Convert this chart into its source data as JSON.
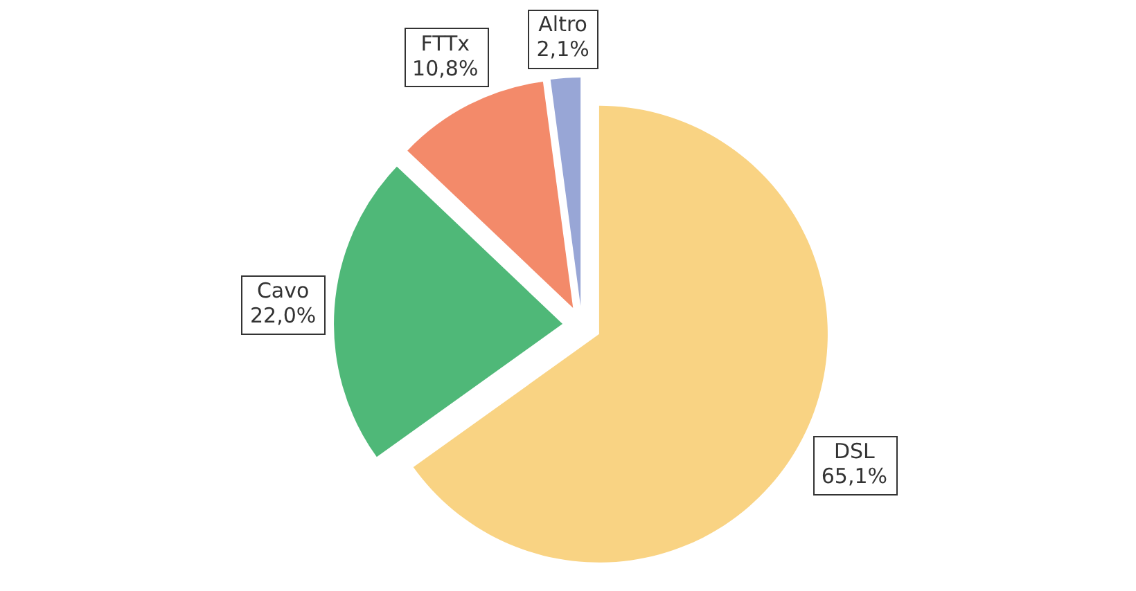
{
  "chart_data": {
    "type": "pie",
    "categories": [
      "DSL",
      "Cavo",
      "FTTx",
      "Altro"
    ],
    "values": [
      65.1,
      22.0,
      10.8,
      2.1
    ],
    "colors": [
      "#f9d383",
      "#4fb878",
      "#f38a6a",
      "#98a6d6"
    ],
    "value_labels": [
      "65,1%",
      "22,0%",
      "10,8%",
      "2,1%"
    ]
  }
}
